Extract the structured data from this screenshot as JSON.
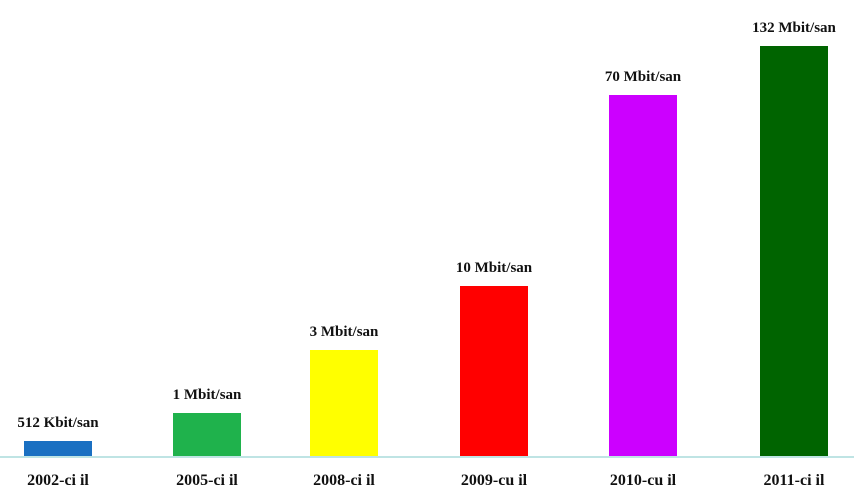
{
  "chart_data": {
    "type": "bar",
    "title": "",
    "xlabel": "",
    "ylabel": "",
    "categories": [
      "2002-ci il",
      "2005-ci il",
      "2008-ci il",
      "2009-cu il",
      "2010-cu il",
      "2011-ci il"
    ],
    "values": [
      0.5,
      1,
      3,
      10,
      70,
      132
    ],
    "value_labels": [
      "512 Kbit/san",
      "1 Mbit/san",
      "3 Mbit/san",
      "10 Mbit/san",
      "70 Mbit/san",
      "132 Mbit/san"
    ],
    "colors": [
      "#1a70c2",
      "#1fb24c",
      "#ffff00",
      "#ff0000",
      "#cc00ff",
      "#006400"
    ],
    "axis_color": "#7fc8c8",
    "grid": false,
    "legend": "none",
    "scale": "non-linear"
  }
}
